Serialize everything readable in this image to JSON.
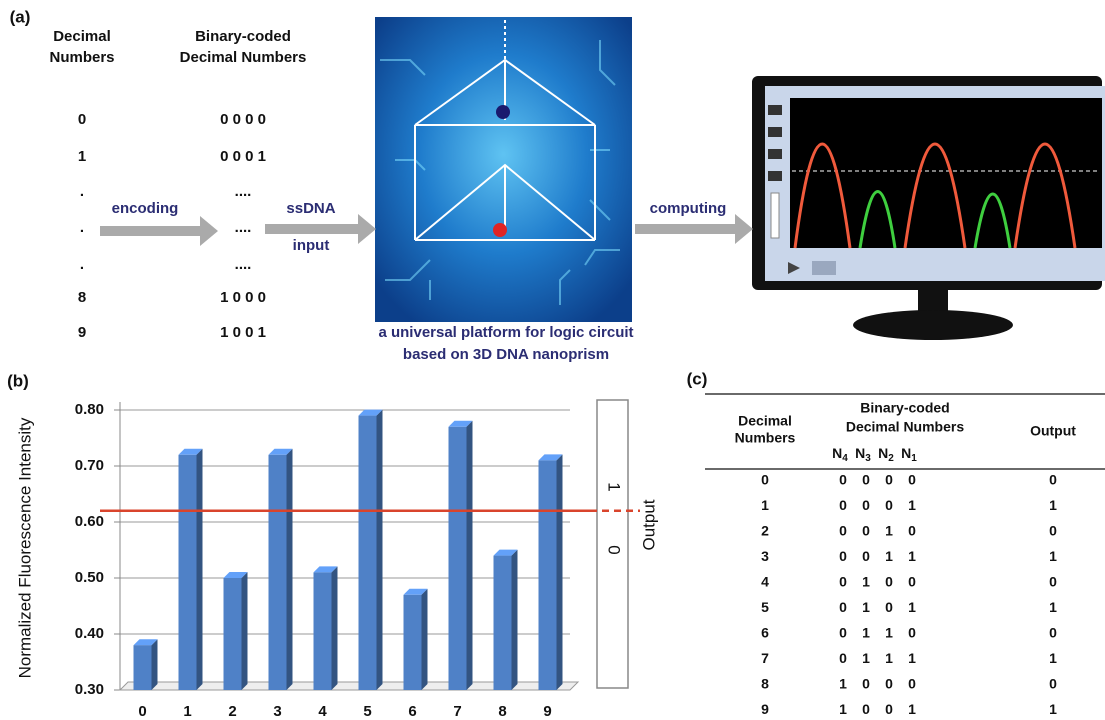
{
  "panel_a": {
    "label": "(a)",
    "decimal_header": [
      "Decimal",
      "Numbers"
    ],
    "binary_header": [
      "Binary-coded",
      "Decimal Numbers"
    ],
    "decimal_rows": [
      "0",
      "1",
      ".",
      ".",
      ".",
      "8",
      "9"
    ],
    "binary_rows": [
      "0 0 0 0",
      "0 0 0 1",
      "....",
      "....",
      "....",
      "1 0 0 0",
      "1 0 0 1"
    ],
    "arrow_encoding": "encoding",
    "arrow_input": [
      "ssDNA",
      "input"
    ],
    "arrow_computing": "computing",
    "caption": [
      "a universal platform for logic circuit",
      "based on 3D DNA nanoprism"
    ]
  },
  "chart_data": {
    "type": "bar",
    "panel_label": "(b)",
    "y_label": "Normalized Fluorescence Intensity",
    "categories": [
      "0",
      "1",
      "2",
      "3",
      "4",
      "5",
      "6",
      "7",
      "8",
      "9"
    ],
    "values": [
      0.38,
      0.72,
      0.5,
      0.72,
      0.51,
      0.79,
      0.47,
      0.77,
      0.54,
      0.71
    ],
    "color": "#4f81c7",
    "ylim": [
      0.3,
      0.8
    ],
    "yticks": [
      {
        "value": 0.3,
        "label": "0.30"
      },
      {
        "value": 0.4,
        "label": "0.40"
      },
      {
        "value": 0.5,
        "label": "0.50"
      },
      {
        "value": 0.6,
        "label": "0.60"
      },
      {
        "value": 0.7,
        "label": "0.70"
      },
      {
        "value": 0.8,
        "label": "0.80"
      }
    ],
    "grid": true,
    "threshold": 0.62,
    "threshold_color": "#d9442c",
    "output_label": "Output",
    "output_ticks": [
      "1",
      "0"
    ]
  },
  "panel_c": {
    "label": "(c)",
    "header_decimal": [
      "Decimal",
      "Numbers"
    ],
    "header_binary": [
      "Binary-coded",
      "Decimal Numbers"
    ],
    "header_bits": [
      {
        "base": "N",
        "sub": "4"
      },
      {
        "base": "N",
        "sub": "3"
      },
      {
        "base": "N",
        "sub": "2"
      },
      {
        "base": "N",
        "sub": "1"
      }
    ],
    "header_output": "Output",
    "rows": [
      [
        0,
        0,
        0,
        0,
        0,
        0
      ],
      [
        1,
        0,
        0,
        0,
        1,
        1
      ],
      [
        2,
        0,
        0,
        1,
        0,
        0
      ],
      [
        3,
        0,
        0,
        1,
        1,
        1
      ],
      [
        4,
        0,
        1,
        0,
        0,
        0
      ],
      [
        5,
        0,
        1,
        0,
        1,
        1
      ],
      [
        6,
        0,
        1,
        1,
        0,
        0
      ],
      [
        7,
        0,
        1,
        1,
        1,
        1
      ],
      [
        8,
        1,
        0,
        0,
        0,
        0
      ],
      [
        9,
        1,
        0,
        0,
        1,
        1
      ]
    ]
  }
}
